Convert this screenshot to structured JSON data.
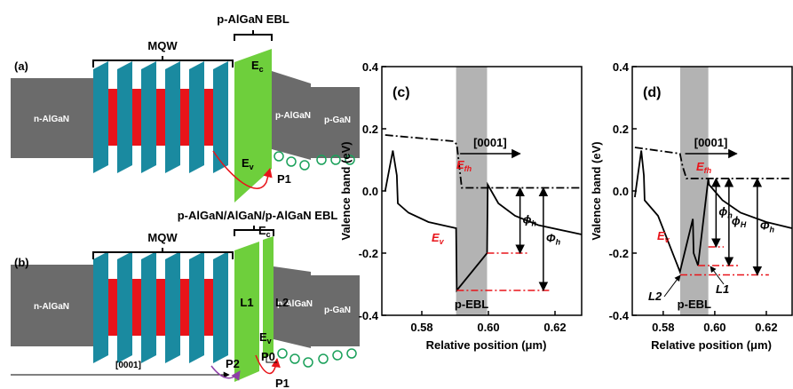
{
  "panel_a": {
    "label": "(a)",
    "mqw": "MQW",
    "ebl": "p-AlGaN EBL",
    "n_layer": "n-AlGaN",
    "p_layer": "p-AlGaN",
    "cap_layer": "p-GaN",
    "ec": {
      "main": "E",
      "sub": "c"
    },
    "ev": {
      "main": "E",
      "sub": "v"
    },
    "path": "P1"
  },
  "panel_b": {
    "label": "(b)",
    "mqw": "MQW",
    "ebl": "p-AlGaN/AlGaN/p-AlGaN EBL",
    "n_layer": "n-AlGaN",
    "p_layer": "p-AlGaN",
    "cap_layer": "p-GaN",
    "ec": {
      "main": "E",
      "sub": "c"
    },
    "ev": {
      "main": "E",
      "sub": "v"
    },
    "l1": "L1",
    "l2": "L2",
    "paths": [
      "P0",
      "P1",
      "P2"
    ],
    "direction": "[0001]"
  },
  "chart_data": [
    {
      "type": "line",
      "panel_label": "(c)",
      "ylabel": "Valence band (eV)",
      "xlabel": "Relative position (μm)",
      "xlim": [
        0.568,
        0.628
      ],
      "ylim": [
        -0.4,
        0.4
      ],
      "xticks": [
        0.58,
        {
          "value": 0.6,
          "label": "0.60"
        },
        0.62
      ],
      "yticks": [
        0.4,
        0.2,
        {
          "value": 0,
          "label": "0.0"
        },
        -0.2,
        -0.4
      ],
      "shaded_region": {
        "label": "p-EBL",
        "x": [
          0.5903,
          0.5996
        ],
        "color": "#b3b3b3"
      },
      "direction": {
        "label": "[0001]",
        "x": [
          0.5915,
          0.6095
        ],
        "y": 0.12
      },
      "series": [
        {
          "color": "#000000",
          "style": "dashdot",
          "x": [
            0.569,
            0.5895,
            0.5905,
            0.592,
            0.628
          ],
          "values": [
            0.18,
            0.16,
            0.15,
            0.01,
            0.01
          ]
        },
        {
          "color": "#000000",
          "style": "solid",
          "x": [
            0.569,
            0.5713,
            0.5725,
            0.5728,
            0.576,
            0.582,
            0.5903,
            0.5905,
            0.5996,
            0.5998,
            0.603,
            0.608,
            0.615,
            0.628
          ],
          "values": [
            0.0,
            0.13,
            0.05,
            -0.04,
            -0.07,
            -0.1,
            -0.12,
            -0.32,
            -0.2,
            0.02,
            -0.04,
            -0.08,
            -0.11,
            -0.14
          ]
        }
      ],
      "annotations": [
        {
          "main": "E",
          "sub": "fh",
          "color": "#e8141a"
        },
        {
          "main": "E",
          "sub": "v",
          "color": "#e8141a"
        }
      ],
      "ref_lines": [
        {
          "y": -0.2,
          "x": [
            0.5996,
            0.612
          ]
        },
        {
          "y": -0.32,
          "x": [
            0.5905,
            0.619
          ]
        }
      ],
      "ref_color": "#e8141a",
      "arrows": [
        {
          "x": 0.6095,
          "y": [
            0.01,
            -0.2
          ],
          "main": "ϕ",
          "sub": "h"
        },
        {
          "x": 0.6165,
          "y": [
            0.01,
            -0.32
          ],
          "main": "Φ",
          "sub": "h"
        }
      ]
    },
    {
      "type": "line",
      "panel_label": "(d)",
      "ylabel": "Valence band (eV)",
      "xlabel": "Relative position (μm)",
      "xlim": [
        0.568,
        0.63
      ],
      "ylim": [
        -0.4,
        0.4
      ],
      "xticks": [
        0.58,
        {
          "value": 0.6,
          "label": "0.60"
        },
        0.62
      ],
      "yticks": [
        0.4,
        0.2,
        {
          "value": 0,
          "label": "0.0"
        },
        -0.2,
        -0.4
      ],
      "shaded_region": {
        "label": "p-EBL",
        "x": [
          0.5866,
          0.5975
        ],
        "color": "#b3b3b3"
      },
      "direction": {
        "label": "[0001]",
        "x": [
          0.5885,
          0.6085
        ],
        "y": 0.12
      },
      "series": [
        {
          "color": "#000000",
          "style": "dashdot",
          "x": [
            0.569,
            0.5865,
            0.5875,
            0.589,
            0.63
          ],
          "values": [
            0.14,
            0.12,
            0.08,
            0.04,
            0.04
          ]
        },
        {
          "color": "#000000",
          "style": "solid",
          "x": [
            0.569,
            0.5715,
            0.5725,
            0.5728,
            0.578,
            0.5865,
            0.5915,
            0.5918,
            0.5935,
            0.5975,
            0.5978,
            0.603,
            0.61,
            0.62,
            0.63
          ],
          "values": [
            -0.02,
            0.13,
            0.05,
            -0.03,
            -0.08,
            -0.26,
            -0.09,
            -0.2,
            -0.24,
            0.04,
            0.02,
            -0.03,
            -0.07,
            -0.1,
            -0.12
          ]
        }
      ],
      "annotations": [
        {
          "main": "E",
          "sub": "fh",
          "color": "#e8141a"
        },
        {
          "main": "E",
          "sub": "v",
          "color": "#e8141a"
        },
        {
          "main": "L2",
          "color": "#000000"
        },
        {
          "main": "L1",
          "color": "#000000"
        }
      ],
      "ref_lines": [
        {
          "y": -0.18,
          "x": [
            0.5975,
            0.6035
          ]
        },
        {
          "y": -0.24,
          "x": [
            0.5935,
            0.609
          ]
        },
        {
          "y": -0.27,
          "x": [
            0.5866,
            0.621
          ]
        }
      ],
      "ref_color": "#e8141a",
      "arrows": [
        {
          "x": 0.6005,
          "y": [
            0.04,
            -0.18
          ],
          "main": "ϕ",
          "sub": "h"
        },
        {
          "x": 0.6055,
          "y": [
            0.04,
            -0.24
          ],
          "main": "ϕ",
          "sub": "H"
        },
        {
          "x": 0.6165,
          "y": [
            0.04,
            -0.27
          ],
          "main": "Φ",
          "sub": "h"
        }
      ]
    }
  ]
}
